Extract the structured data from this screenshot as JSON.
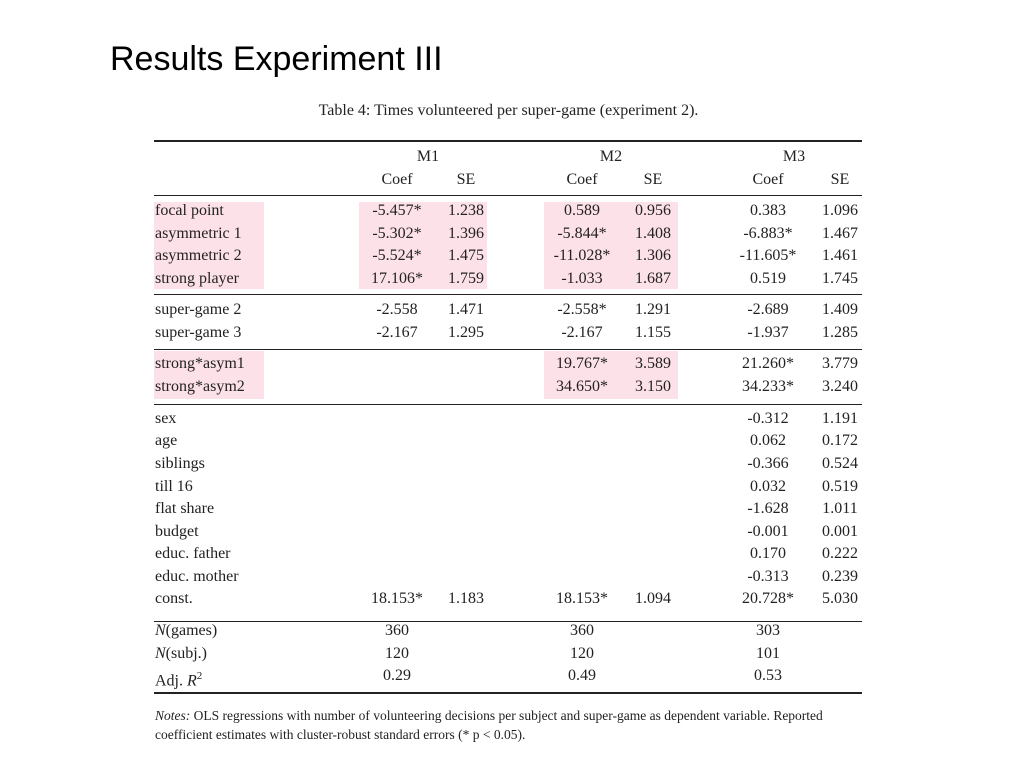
{
  "slide": {
    "title": "Results Experiment III"
  },
  "table": {
    "caption": "Table 4: Times volunteered per super-game (experiment 2).",
    "models": [
      "M1",
      "M2",
      "M3"
    ],
    "subheaders": [
      "Coef",
      "SE",
      "Coef",
      "SE",
      "Coef",
      "SE"
    ],
    "rows": [
      {
        "label": "focal point",
        "m1c": "-5.457*",
        "m1s": "1.238",
        "m2c": "0.589",
        "m2s": "0.956",
        "m3c": "0.383",
        "m3s": "1.096"
      },
      {
        "label": "asymmetric 1",
        "m1c": "-5.302*",
        "m1s": "1.396",
        "m2c": "-5.844*",
        "m2s": "1.408",
        "m3c": "-6.883*",
        "m3s": "1.467"
      },
      {
        "label": "asymmetric 2",
        "m1c": "-5.524*",
        "m1s": "1.475",
        "m2c": "-11.028*",
        "m2s": "1.306",
        "m3c": "-11.605*",
        "m3s": "1.461"
      },
      {
        "label": "strong player",
        "m1c": "17.106*",
        "m1s": "1.759",
        "m2c": "-1.033",
        "m2s": "1.687",
        "m3c": "0.519",
        "m3s": "1.745"
      },
      {
        "label": "super-game 2",
        "m1c": "-2.558",
        "m1s": "1.471",
        "m2c": "-2.558*",
        "m2s": "1.291",
        "m3c": "-2.689",
        "m3s": "1.409"
      },
      {
        "label": "super-game 3",
        "m1c": "-2.167",
        "m1s": "1.295",
        "m2c": "-2.167",
        "m2s": "1.155",
        "m3c": "-1.937",
        "m3s": "1.285"
      },
      {
        "label": "strong*asym1",
        "m1c": "",
        "m1s": "",
        "m2c": "19.767*",
        "m2s": "3.589",
        "m3c": "21.260*",
        "m3s": "3.779"
      },
      {
        "label": "strong*asym2",
        "m1c": "",
        "m1s": "",
        "m2c": "34.650*",
        "m2s": "3.150",
        "m3c": "34.233*",
        "m3s": "3.240"
      },
      {
        "label": "sex",
        "m1c": "",
        "m1s": "",
        "m2c": "",
        "m2s": "",
        "m3c": "-0.312",
        "m3s": "1.191"
      },
      {
        "label": "age",
        "m1c": "",
        "m1s": "",
        "m2c": "",
        "m2s": "",
        "m3c": "0.062",
        "m3s": "0.172"
      },
      {
        "label": "siblings",
        "m1c": "",
        "m1s": "",
        "m2c": "",
        "m2s": "",
        "m3c": "-0.366",
        "m3s": "0.524"
      },
      {
        "label": "till 16",
        "m1c": "",
        "m1s": "",
        "m2c": "",
        "m2s": "",
        "m3c": "0.032",
        "m3s": "0.519"
      },
      {
        "label": "flat share",
        "m1c": "",
        "m1s": "",
        "m2c": "",
        "m2s": "",
        "m3c": "-1.628",
        "m3s": "1.011"
      },
      {
        "label": "budget",
        "m1c": "",
        "m1s": "",
        "m2c": "",
        "m2s": "",
        "m3c": "-0.001",
        "m3s": "0.001"
      },
      {
        "label": "educ. father",
        "m1c": "",
        "m1s": "",
        "m2c": "",
        "m2s": "",
        "m3c": "0.170",
        "m3s": "0.222"
      },
      {
        "label": "educ. mother",
        "m1c": "",
        "m1s": "",
        "m2c": "",
        "m2s": "",
        "m3c": "-0.313",
        "m3s": "0.239"
      },
      {
        "label": "const.",
        "m1c": "18.153*",
        "m1s": "1.183",
        "m2c": "18.153*",
        "m2s": "1.094",
        "m3c": "20.728*",
        "m3s": "5.030"
      }
    ],
    "stats": [
      {
        "pre": "N",
        "post": "(games)",
        "sup": "",
        "m1": "360",
        "m2": "360",
        "m3": "303"
      },
      {
        "pre": "N",
        "post": "(subj.)",
        "sup": "",
        "m1": "120",
        "m2": "120",
        "m3": "101"
      },
      {
        "pre": "Adj. ",
        "post": "R",
        "sup": "2",
        "m1": "0.29",
        "m2": "0.49",
        "m3": "0.53"
      }
    ],
    "notes": {
      "label": "Notes:",
      "text": " OLS regressions with number of volunteering decisions per subject and super-game as dependent variable. Reported coefficient estimates with cluster-robust standard errors (* p < 0.05)."
    },
    "highlight_color": "#fde1e8"
  }
}
